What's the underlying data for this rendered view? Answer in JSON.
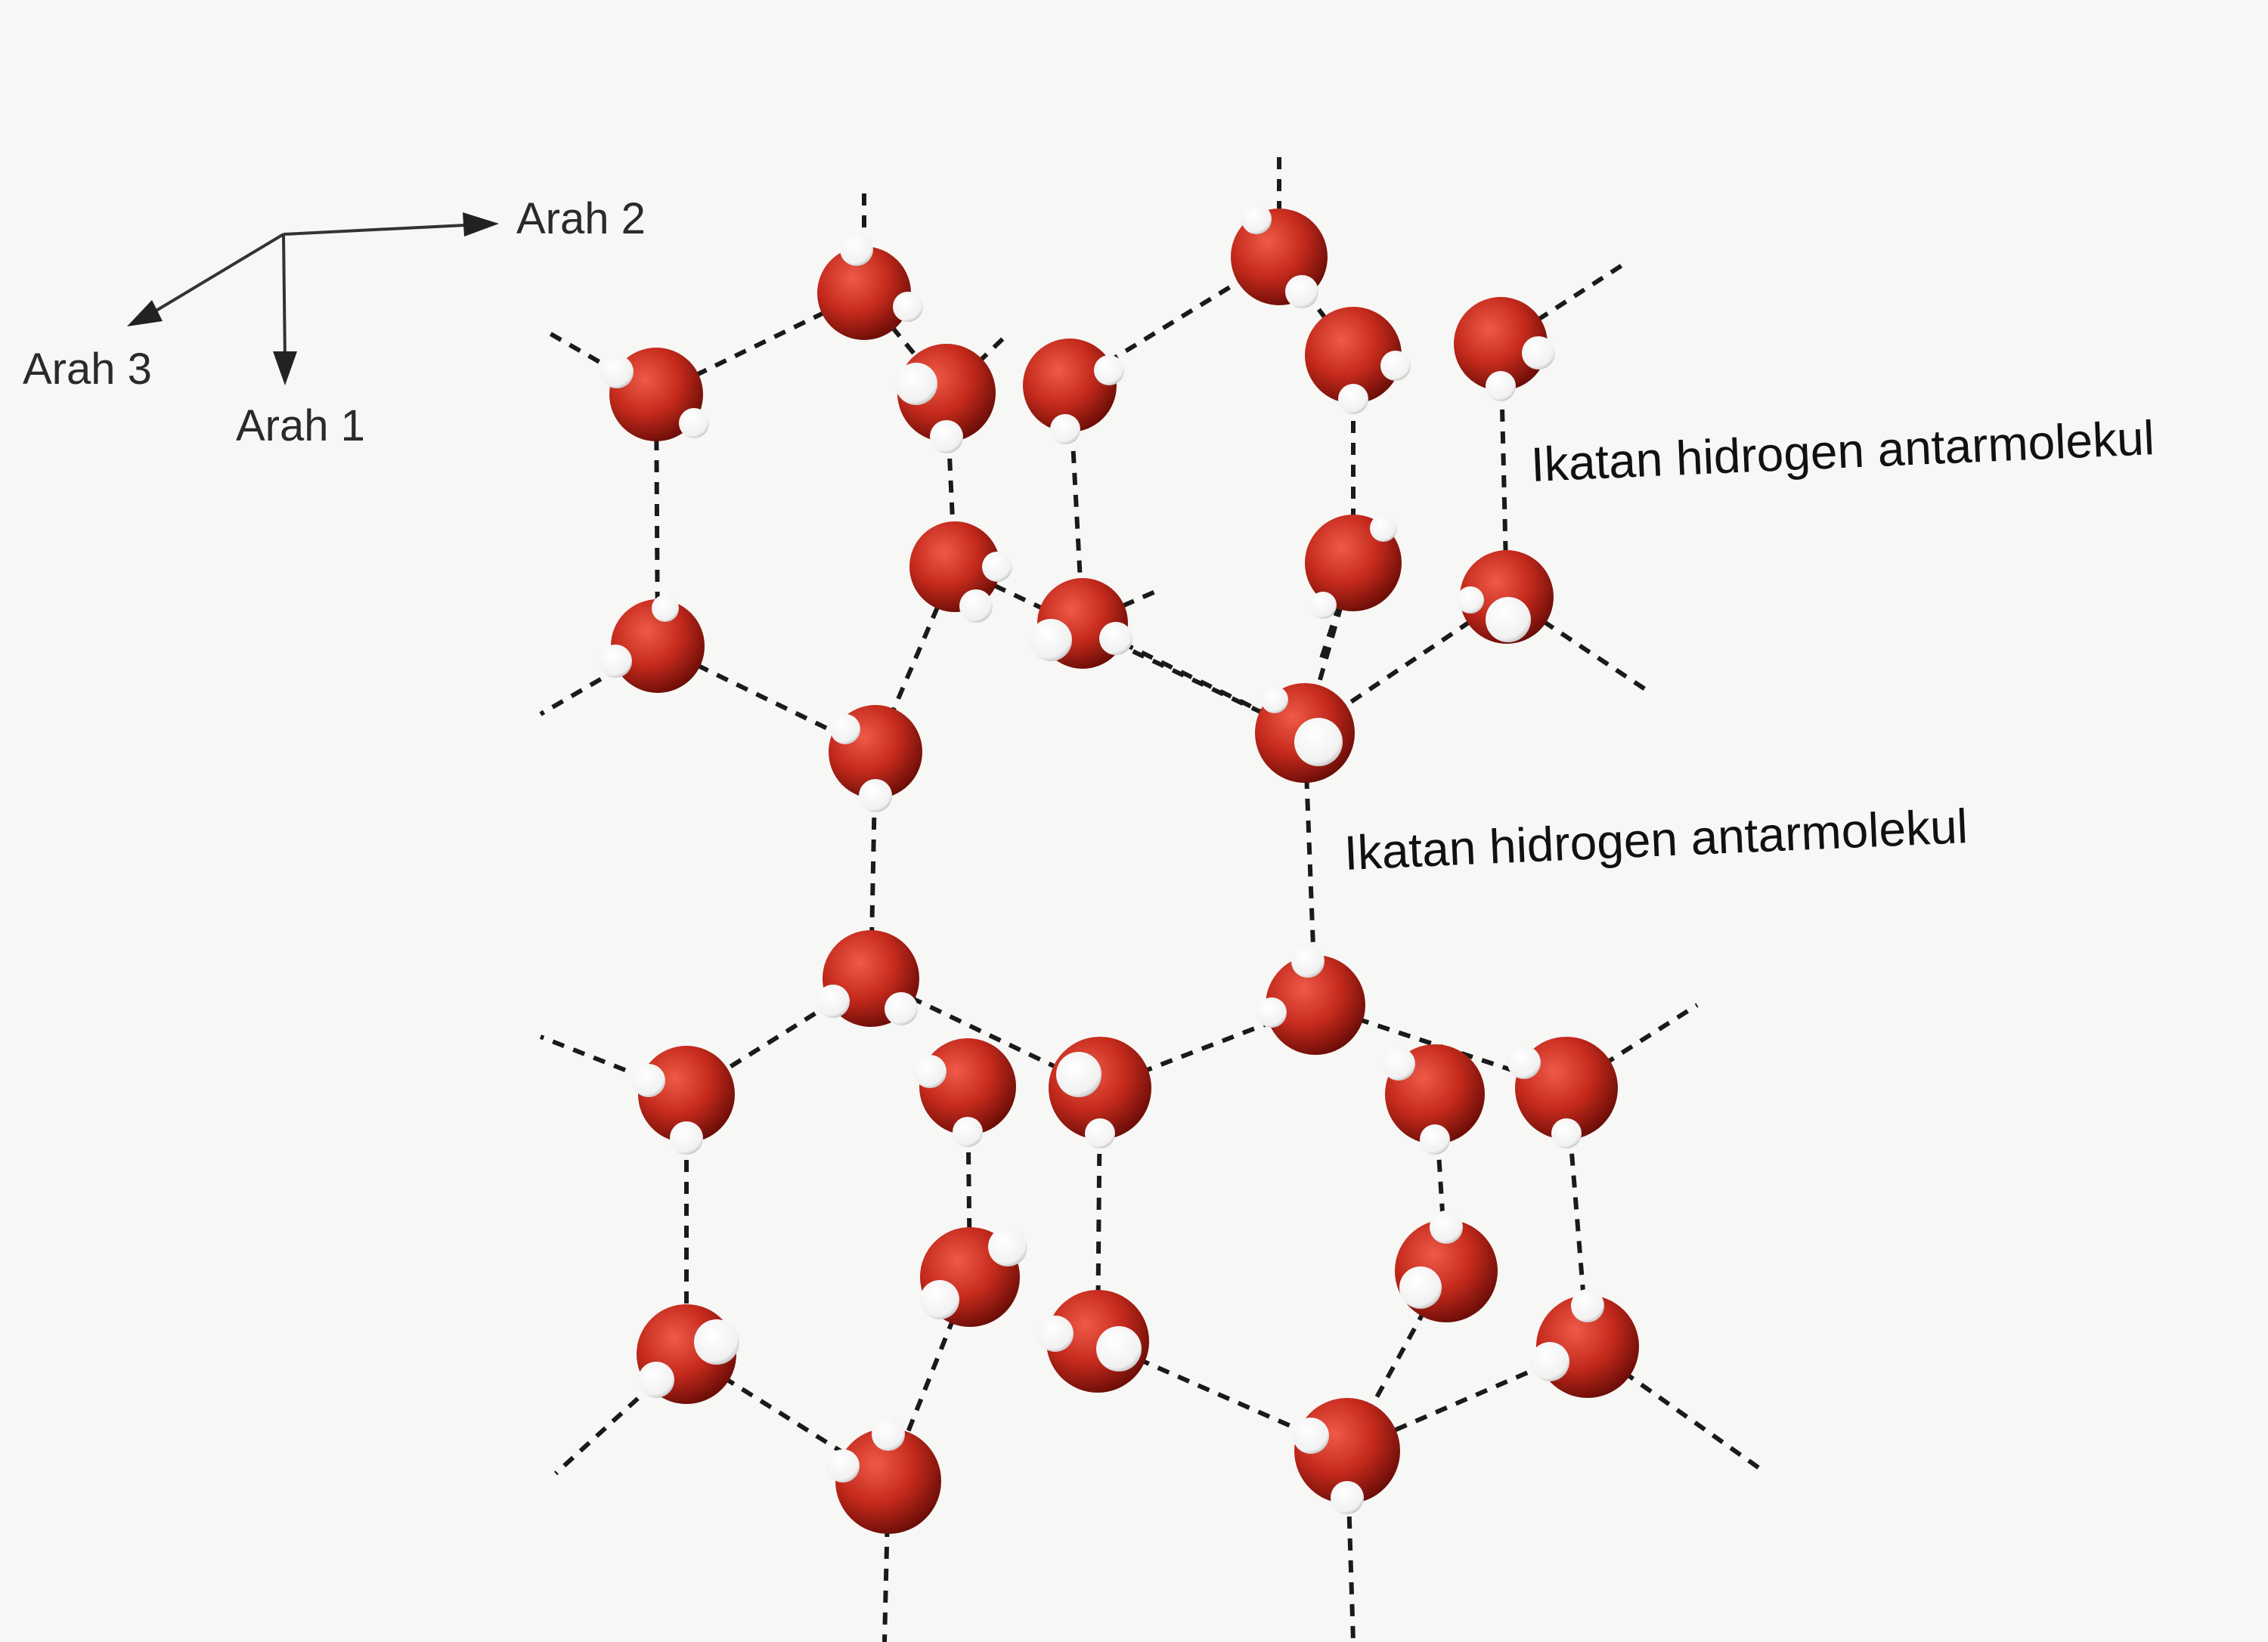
{
  "axes": {
    "direction_1": "Arah 1",
    "direction_2": "Arah 2",
    "direction_3": "Arah 3"
  },
  "annotations": {
    "bond_label_upper": "Ikatan hidrogen antarmolekul",
    "bond_label_middle": "Ikatan hidrogen antarmolekul"
  },
  "colors": {
    "oxygen": "#c0281b",
    "hydrogen": "#ffffff",
    "bond_line": "#1a1a1a",
    "background": "#f7f7f5"
  },
  "structure": {
    "molecule": "water",
    "layers": 2,
    "bond_type": "hydrogen bond (dashed)"
  }
}
